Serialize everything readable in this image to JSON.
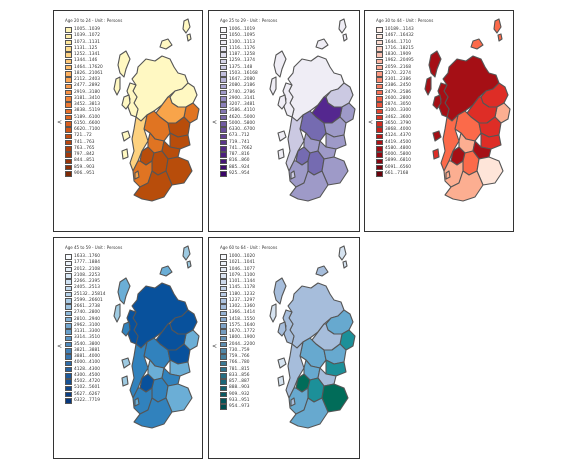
{
  "panels": [
    {
      "title": "Age 20 to 24 - Unit : Persons",
      "north": "<",
      "palette": [
        "#fff8c2",
        "#fdd17f",
        "#f8a44a",
        "#e07422",
        "#b84d0b"
      ],
      "legend": [
        {
          "label": "1005...1039",
          "color": "#fff4b8"
        },
        {
          "label": "1039...1072",
          "color": "#ffeeaa"
        },
        {
          "label": "1073...1131",
          "color": "#fee79c"
        },
        {
          "label": "1131...125",
          "color": "#fedd90"
        },
        {
          "label": "1252...1341",
          "color": "#fed384"
        },
        {
          "label": "1344...146",
          "color": "#fec878"
        },
        {
          "label": "1464...17620",
          "color": "#febd6c"
        },
        {
          "label": "1826...21061",
          "color": "#fdb160"
        },
        {
          "label": "2112...2403",
          "color": "#fca656"
        },
        {
          "label": "2477...2892",
          "color": "#fa9b4c"
        },
        {
          "label": "2919...3180",
          "color": "#f79043"
        },
        {
          "label": "3181...3410",
          "color": "#f3853a"
        },
        {
          "label": "3452...3813",
          "color": "#ee7a32"
        },
        {
          "label": "3838...5119",
          "color": "#e8712b"
        },
        {
          "label": "5189...6100",
          "color": "#e16824"
        },
        {
          "label": "6150...6600",
          "color": "#d95f1e"
        },
        {
          "label": "6620...7100",
          "color": "#d05618"
        },
        {
          "label": "721...72",
          "color": "#c64e13"
        },
        {
          "label": "741...763",
          "color": "#bb470f"
        },
        {
          "label": "763...765",
          "color": "#b0400c"
        },
        {
          "label": "797...842",
          "color": "#a43a0a"
        },
        {
          "label": "844...851",
          "color": "#983408"
        },
        {
          "label": "859...903",
          "color": "#8c2f07"
        },
        {
          "label": "906...951",
          "color": "#7f2a06"
        }
      ]
    },
    {
      "title": "Age 25 to 29 - Unit : Persons",
      "north": "<",
      "palette": [
        "#efedf5",
        "#cbc9e2",
        "#9e9ac8",
        "#756bb1",
        "#54278f"
      ],
      "legend": [
        {
          "label": "1006...1019",
          "color": "#fcfbfd"
        },
        {
          "label": "1050...1095",
          "color": "#f5f3f9"
        },
        {
          "label": "1100...1113",
          "color": "#eeecf5"
        },
        {
          "label": "1116...1176",
          "color": "#e6e5f1"
        },
        {
          "label": "1187...1258",
          "color": "#dedded"
        },
        {
          "label": "1259...1374",
          "color": "#d5d4e8"
        },
        {
          "label": "1375...148",
          "color": "#cbcae3"
        },
        {
          "label": "1503...16168",
          "color": "#c1bedd"
        },
        {
          "label": "1647...2080",
          "color": "#b6b2d7"
        },
        {
          "label": "2080...2186",
          "color": "#aba6d0"
        },
        {
          "label": "2740...2786",
          "color": "#a09ac9"
        },
        {
          "label": "2900...3141",
          "color": "#968dc1"
        },
        {
          "label": "3207...3481",
          "color": "#8c81b9"
        },
        {
          "label": "3586...4110",
          "color": "#8375b1"
        },
        {
          "label": "4620...5000",
          "color": "#7a68a9"
        },
        {
          "label": "5000...5800",
          "color": "#725ca2"
        },
        {
          "label": "6330...6700",
          "color": "#6a4f9a"
        },
        {
          "label": "673...712",
          "color": "#634293"
        },
        {
          "label": "719...741",
          "color": "#5b368b"
        },
        {
          "label": "741...7662",
          "color": "#532a84"
        },
        {
          "label": "787...816",
          "color": "#4c1f7d"
        },
        {
          "label": "816...860",
          "color": "#451576"
        },
        {
          "label": "885...924",
          "color": "#3f0c6f"
        },
        {
          "label": "925...954",
          "color": "#3a0568"
        }
      ]
    },
    {
      "title": "Age 30 to 44 - Unit : Persons",
      "north": "<",
      "palette": [
        "#fee5d9",
        "#fcae91",
        "#fb6a4a",
        "#de2d26",
        "#a50f15"
      ],
      "legend": [
        {
          "label": "10189...1143",
          "color": "#fff0ea"
        },
        {
          "label": "1467...16432",
          "color": "#fee6dc"
        },
        {
          "label": "1644...1710",
          "color": "#fddbcf"
        },
        {
          "label": "1716...18215",
          "color": "#fccfc1"
        },
        {
          "label": "1830...1909",
          "color": "#fcc2b2"
        },
        {
          "label": "1962...20495",
          "color": "#fcb5a2"
        },
        {
          "label": "2059...2168",
          "color": "#fca792"
        },
        {
          "label": "2170...2274",
          "color": "#fc9982"
        },
        {
          "label": "2301...2386",
          "color": "#fb8b72"
        },
        {
          "label": "2386...2450",
          "color": "#f97d63"
        },
        {
          "label": "2479...2586",
          "color": "#f76f55"
        },
        {
          "label": "2600...2800",
          "color": "#f26147"
        },
        {
          "label": "2874...3050",
          "color": "#ec533b"
        },
        {
          "label": "3100...3300",
          "color": "#e44530"
        },
        {
          "label": "3462...3600",
          "color": "#dc3828"
        },
        {
          "label": "3650...3790",
          "color": "#d22c21"
        },
        {
          "label": "3868...4000",
          "color": "#c7221c"
        },
        {
          "label": "4124...4370",
          "color": "#bb1919"
        },
        {
          "label": "4419...4500",
          "color": "#af1216"
        },
        {
          "label": "4580...4800",
          "color": "#a20c14"
        },
        {
          "label": "5000...5800",
          "color": "#940812"
        },
        {
          "label": "5899...6810",
          "color": "#860510"
        },
        {
          "label": "6091...6560",
          "color": "#78030e"
        },
        {
          "label": "661...7168",
          "color": "#6b020c"
        }
      ]
    },
    {
      "title": "Age 45 to 59 - Unit : Persons",
      "north": "<",
      "palette": [
        "#deebf7",
        "#9ecae1",
        "#6baed6",
        "#3182bd",
        "#08519c"
      ],
      "legend": [
        {
          "label": "1633...1760",
          "color": "#f7fbff"
        },
        {
          "label": "1777...1884",
          "color": "#eef5fc"
        },
        {
          "label": "2012...2108",
          "color": "#e4eff9"
        },
        {
          "label": "2108...2253",
          "color": "#d9e8f5"
        },
        {
          "label": "2266...2395",
          "color": "#cee1f2"
        },
        {
          "label": "2405...2513",
          "color": "#c3daee"
        },
        {
          "label": "25132...25814",
          "color": "#b7d3ea"
        },
        {
          "label": "2599...26601",
          "color": "#aacbe5"
        },
        {
          "label": "2661...2738",
          "color": "#9dc3e0"
        },
        {
          "label": "2740...2800",
          "color": "#8fbadb"
        },
        {
          "label": "2810...2940",
          "color": "#82b1d6"
        },
        {
          "label": "2962...3100",
          "color": "#75a8d0"
        },
        {
          "label": "3131...3300",
          "color": "#689fca"
        },
        {
          "label": "3314...3510",
          "color": "#5b95c4"
        },
        {
          "label": "3540...3800",
          "color": "#4f8bbe"
        },
        {
          "label": "3821...3881",
          "color": "#4381b7"
        },
        {
          "label": "3881...4000",
          "color": "#3877b0"
        },
        {
          "label": "4000...4100",
          "color": "#2e6da9"
        },
        {
          "label": "4128...4300",
          "color": "#2563a2"
        },
        {
          "label": "4300...4500",
          "color": "#1d5a9b"
        },
        {
          "label": "4502...4720",
          "color": "#165194"
        },
        {
          "label": "5102...5601",
          "color": "#10488d"
        },
        {
          "label": "5627...6267",
          "color": "#0b4086"
        },
        {
          "label": "6322...7719",
          "color": "#07387e"
        }
      ]
    },
    {
      "title": "Age 60 to 64 - Unit : Persons",
      "north": "<",
      "palette": [
        "#d6e3f0",
        "#a6bddb",
        "#67a9cf",
        "#1c9099",
        "#016c59"
      ],
      "legend": [
        {
          "label": "1000...1020",
          "color": "#f6f8fc"
        },
        {
          "label": "1021...1041",
          "color": "#edf1f8"
        },
        {
          "label": "1046...1077",
          "color": "#e3eaf4"
        },
        {
          "label": "1079...1100",
          "color": "#d9e2f0"
        },
        {
          "label": "1101...1144",
          "color": "#cedaec"
        },
        {
          "label": "1145...1178",
          "color": "#c3d2e7"
        },
        {
          "label": "1180...1232",
          "color": "#b8cae3"
        },
        {
          "label": "1237...1297",
          "color": "#adc2de"
        },
        {
          "label": "1302...1360",
          "color": "#a2bad9"
        },
        {
          "label": "1366...1414",
          "color": "#96b2d3"
        },
        {
          "label": "1418...1550",
          "color": "#8aaacd"
        },
        {
          "label": "1575...1640",
          "color": "#7ea2c6"
        },
        {
          "label": "1670...1772",
          "color": "#739bbf"
        },
        {
          "label": "1800...1900",
          "color": "#6894b7"
        },
        {
          "label": "2044...2200",
          "color": "#5d8daf"
        },
        {
          "label": "730...759",
          "color": "#5187a7"
        },
        {
          "label": "759...766",
          "color": "#46809e"
        },
        {
          "label": "766...780",
          "color": "#3b7a95"
        },
        {
          "label": "781...815",
          "color": "#30738b"
        },
        {
          "label": "833...856",
          "color": "#266d81"
        },
        {
          "label": "857...887",
          "color": "#1c6677"
        },
        {
          "label": "888...903",
          "color": "#13606d"
        },
        {
          "label": "909...932",
          "color": "#0b5a63"
        },
        {
          "label": "933...951",
          "color": "#055459"
        },
        {
          "label": "954...973",
          "color": "#014e50"
        }
      ]
    }
  ]
}
